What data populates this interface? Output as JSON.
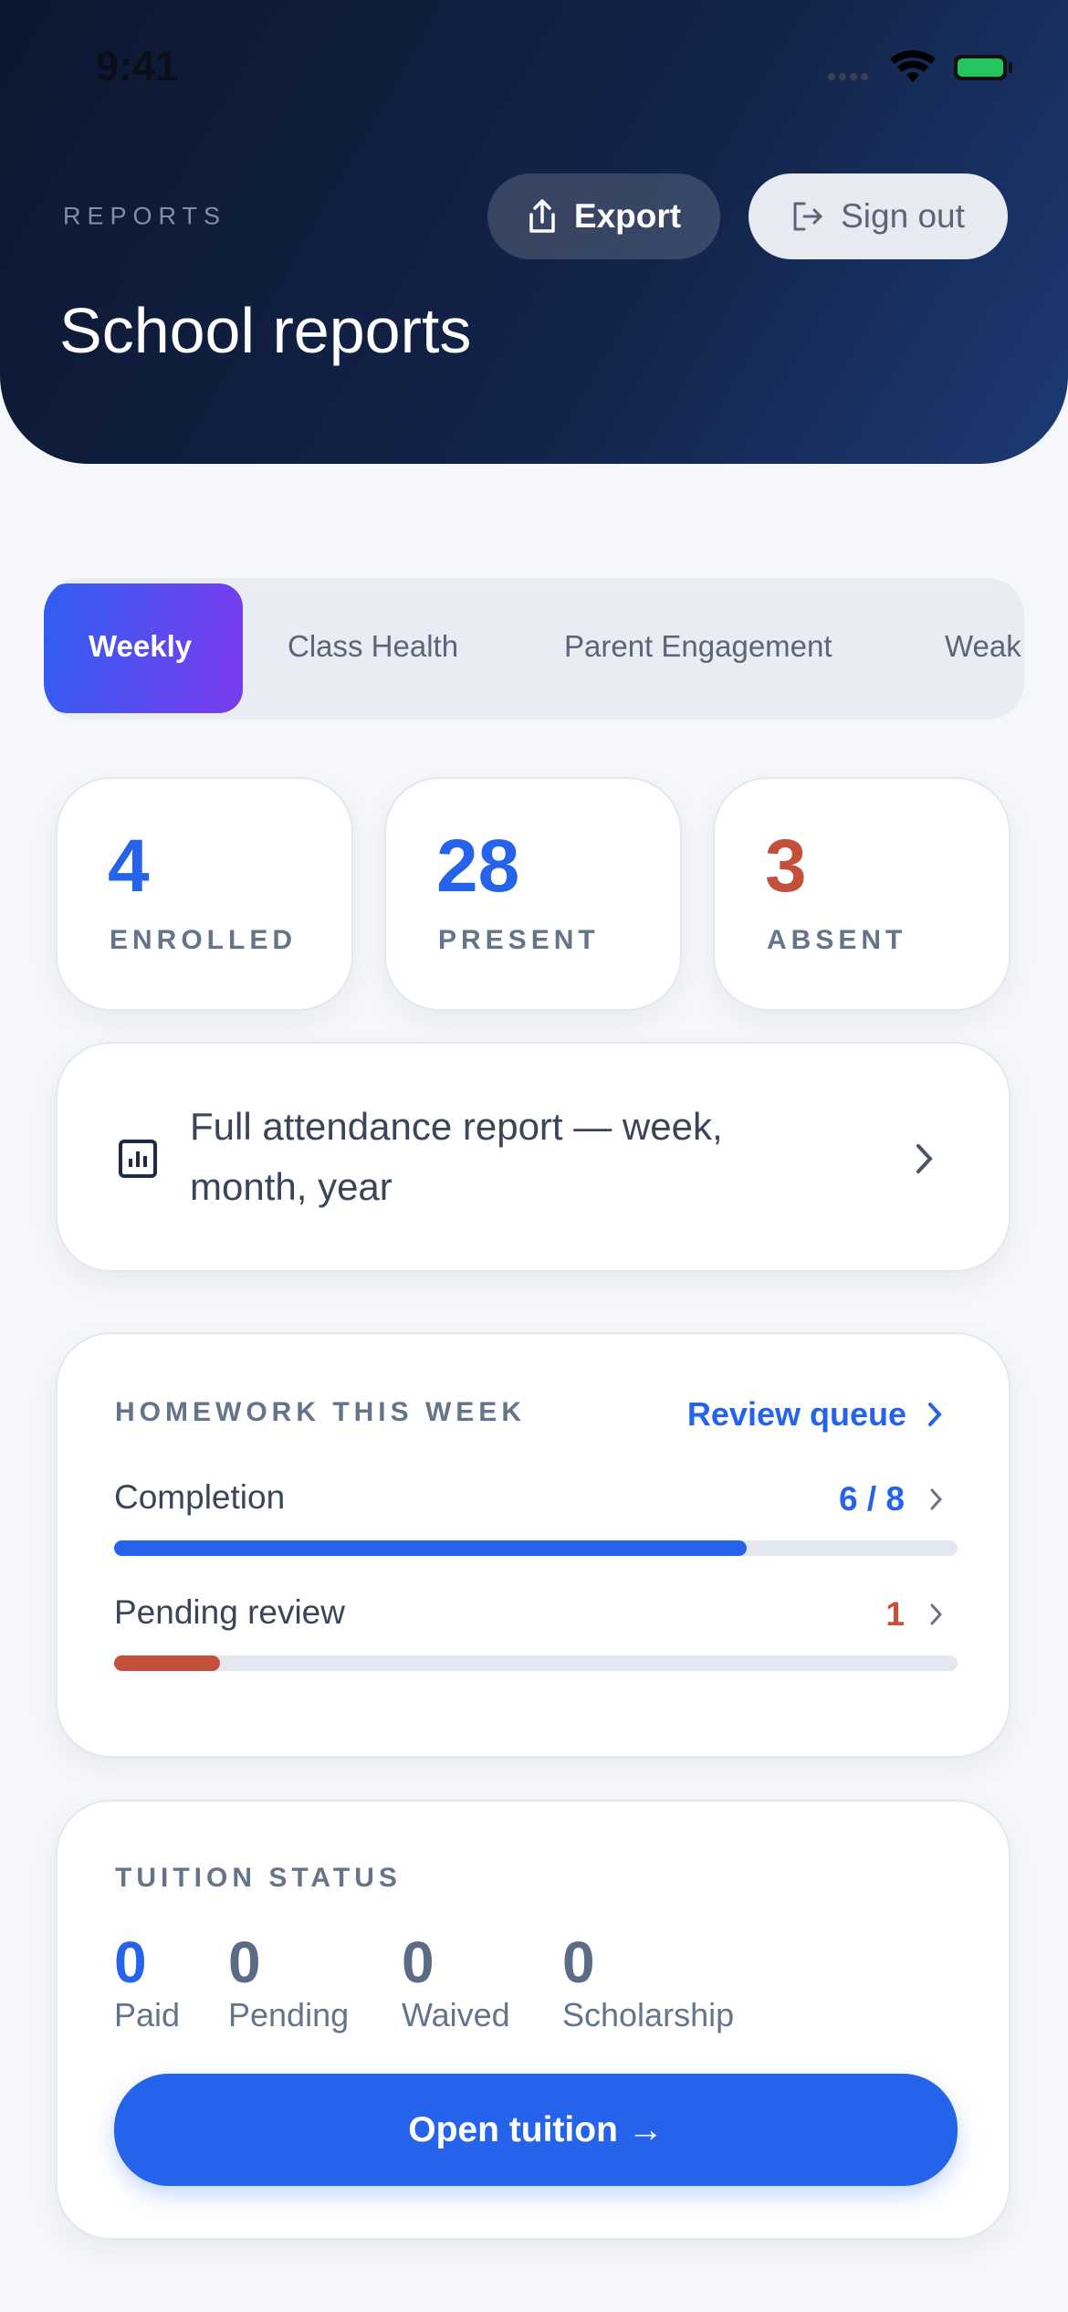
{
  "status_bar": {
    "time": "9:41"
  },
  "header": {
    "eyebrow": "REPORTS",
    "title": "School reports",
    "export": "Export",
    "sign_out": "Sign out"
  },
  "tabs": [
    "Weekly",
    "Class Health",
    "Parent Engagement",
    "Weak"
  ],
  "stats": [
    {
      "value": "4",
      "label": "ENROLLED"
    },
    {
      "value": "28",
      "label": "PRESENT"
    },
    {
      "value": "3",
      "label": "ABSENT"
    }
  ],
  "attendance_link": "Full attendance report — week, month, year",
  "homework": {
    "title": "HOMEWORK THIS WEEK",
    "review_link": "Review queue",
    "completion": {
      "label": "Completion",
      "value_label": "6 / 8",
      "done": 6,
      "total": 8
    },
    "pending": {
      "label": "Pending review",
      "value": 1
    }
  },
  "tuition": {
    "title": "TUITION STATUS",
    "items": [
      {
        "value": "0",
        "label": "Paid"
      },
      {
        "value": "0",
        "label": "Pending"
      },
      {
        "value": "0",
        "label": "Waived"
      },
      {
        "value": "0",
        "label": "Scholarship"
      }
    ],
    "button": "Open tuition →"
  }
}
